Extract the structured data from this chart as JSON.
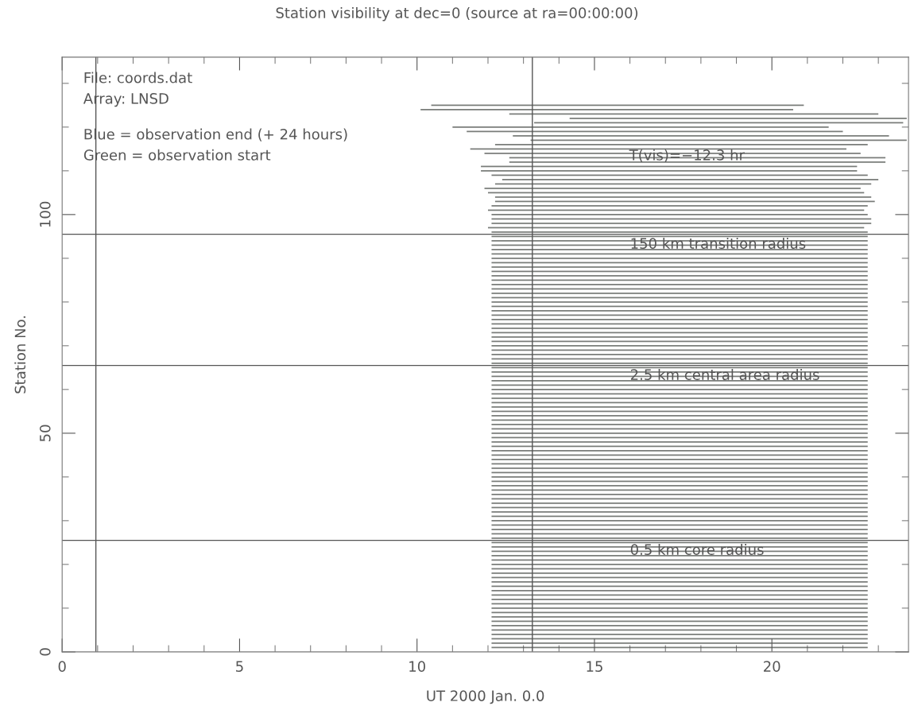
{
  "chart_data": {
    "type": "bar",
    "orientation": "horizontal",
    "title": "Station visibility at dec=0 (source at ra=00:00:00)",
    "xlabel": "UT 2000 Jan. 0.0",
    "ylabel": "Station No.",
    "x": [
      1,
      2,
      3,
      4,
      5,
      6,
      7,
      8,
      9,
      10,
      11,
      12,
      13,
      14,
      15,
      16,
      17,
      18,
      19,
      20,
      21,
      22,
      23,
      24,
      25,
      26,
      27,
      28,
      29,
      30,
      31,
      32,
      33,
      34,
      35,
      36,
      37,
      38,
      39,
      40,
      41,
      42,
      43,
      44,
      45,
      46,
      47,
      48,
      49,
      50,
      51,
      52,
      53,
      54,
      55,
      56,
      57,
      58,
      59,
      60,
      61,
      62,
      63,
      64,
      65,
      66,
      67,
      68,
      69,
      70,
      71,
      72,
      73,
      74,
      75,
      76,
      77,
      78,
      79,
      80,
      81,
      82,
      83,
      84,
      85,
      86,
      87,
      88,
      89,
      90,
      91,
      92,
      93,
      94,
      95,
      96,
      97,
      98,
      99,
      100,
      101,
      102,
      103,
      104,
      105,
      106,
      107,
      108,
      109,
      110,
      111,
      112,
      113,
      114,
      115,
      116,
      117,
      118,
      119,
      120,
      121,
      122,
      123,
      124,
      125
    ],
    "base": [
      12.1,
      12.1,
      12.1,
      12.1,
      12.1,
      12.1,
      12.1,
      12.1,
      12.1,
      12.1,
      12.1,
      12.1,
      12.1,
      12.1,
      12.1,
      12.1,
      12.1,
      12.1,
      12.1,
      12.1,
      12.1,
      12.1,
      12.1,
      12.1,
      12.1,
      12.1,
      12.1,
      12.1,
      12.1,
      12.1,
      12.1,
      12.1,
      12.1,
      12.1,
      12.1,
      12.1,
      12.1,
      12.1,
      12.1,
      12.1,
      12.1,
      12.1,
      12.1,
      12.1,
      12.1,
      12.1,
      12.1,
      12.1,
      12.1,
      12.1,
      12.1,
      12.1,
      12.1,
      12.1,
      12.1,
      12.1,
      12.1,
      12.1,
      12.1,
      12.1,
      12.1,
      12.1,
      12.1,
      12.1,
      12.1,
      12.1,
      12.1,
      12.1,
      12.1,
      12.1,
      12.1,
      12.1,
      12.1,
      12.1,
      12.1,
      12.1,
      12.1,
      12.1,
      12.1,
      12.1,
      12.1,
      12.1,
      12.1,
      12.1,
      12.1,
      12.1,
      12.1,
      12.1,
      12.1,
      12.1,
      12.1,
      12.1,
      12.1,
      12.1,
      12.1,
      12.1,
      12.0,
      12.1,
      12.1,
      12.1,
      12.0,
      12.1,
      12.2,
      12.2,
      12.0,
      11.9,
      12.2,
      12.4,
      12.1,
      11.8,
      11.8,
      12.6,
      12.6,
      11.9,
      11.5,
      12.2,
      13.2,
      12.7,
      11.4,
      11.0,
      13.3,
      14.3,
      12.6,
      10.1,
      10.4
    ],
    "values": [
      10.6,
      10.6,
      10.6,
      10.6,
      10.6,
      10.6,
      10.6,
      10.6,
      10.6,
      10.6,
      10.6,
      10.6,
      10.6,
      10.6,
      10.6,
      10.6,
      10.6,
      10.6,
      10.6,
      10.6,
      10.6,
      10.6,
      10.6,
      10.6,
      10.6,
      10.6,
      10.6,
      10.6,
      10.6,
      10.6,
      10.6,
      10.6,
      10.6,
      10.6,
      10.6,
      10.6,
      10.6,
      10.6,
      10.6,
      10.6,
      10.6,
      10.6,
      10.6,
      10.6,
      10.6,
      10.6,
      10.6,
      10.6,
      10.6,
      10.6,
      10.6,
      10.6,
      10.6,
      10.6,
      10.6,
      10.6,
      10.6,
      10.6,
      10.6,
      10.6,
      10.6,
      10.6,
      10.6,
      10.6,
      10.6,
      10.6,
      10.6,
      10.6,
      10.6,
      10.6,
      10.6,
      10.6,
      10.6,
      10.6,
      10.6,
      10.6,
      10.6,
      10.6,
      10.6,
      10.6,
      10.6,
      10.6,
      10.6,
      10.6,
      10.6,
      10.6,
      10.6,
      10.6,
      10.6,
      10.6,
      10.6,
      10.6,
      10.6,
      10.6,
      10.6,
      10.6,
      10.6,
      10.7,
      10.7,
      10.6,
      10.6,
      10.6,
      10.7,
      10.6,
      10.6,
      10.6,
      10.6,
      10.6,
      10.6,
      10.6,
      10.6,
      10.6,
      10.6,
      10.6,
      10.6,
      10.5,
      10.6,
      10.6,
      10.6,
      10.6,
      10.4,
      9.5,
      10.4,
      10.5,
      10.5
    ],
    "color": "#7a7d7a",
    "xlim": [
      0,
      23.85
    ],
    "xticks": [
      0,
      5,
      10,
      15,
      20
    ],
    "ylim": [
      0,
      136
    ],
    "yticks": [
      0,
      50,
      100
    ],
    "ref_lines": [
      {
        "axis": "y",
        "value": 95.5,
        "label": "150 km transition radius",
        "color": "#555555"
      },
      {
        "axis": "y",
        "value": 65.5,
        "label": "2.5 km central area radius",
        "color": "#555555"
      },
      {
        "axis": "y",
        "value": 25.5,
        "label": "0.5 km core radius",
        "color": "#555555"
      },
      {
        "axis": "x",
        "value": 0.95,
        "color": "#555555"
      },
      {
        "axis": "x",
        "value": 13.25,
        "color": "#555555"
      }
    ],
    "annotations": [
      "File: coords.dat",
      "Array: LNSD",
      "Blue = observation end (+ 24 hours)",
      "Green = observation start",
      "T(vis)=−12.3 hr"
    ],
    "grid": false
  }
}
